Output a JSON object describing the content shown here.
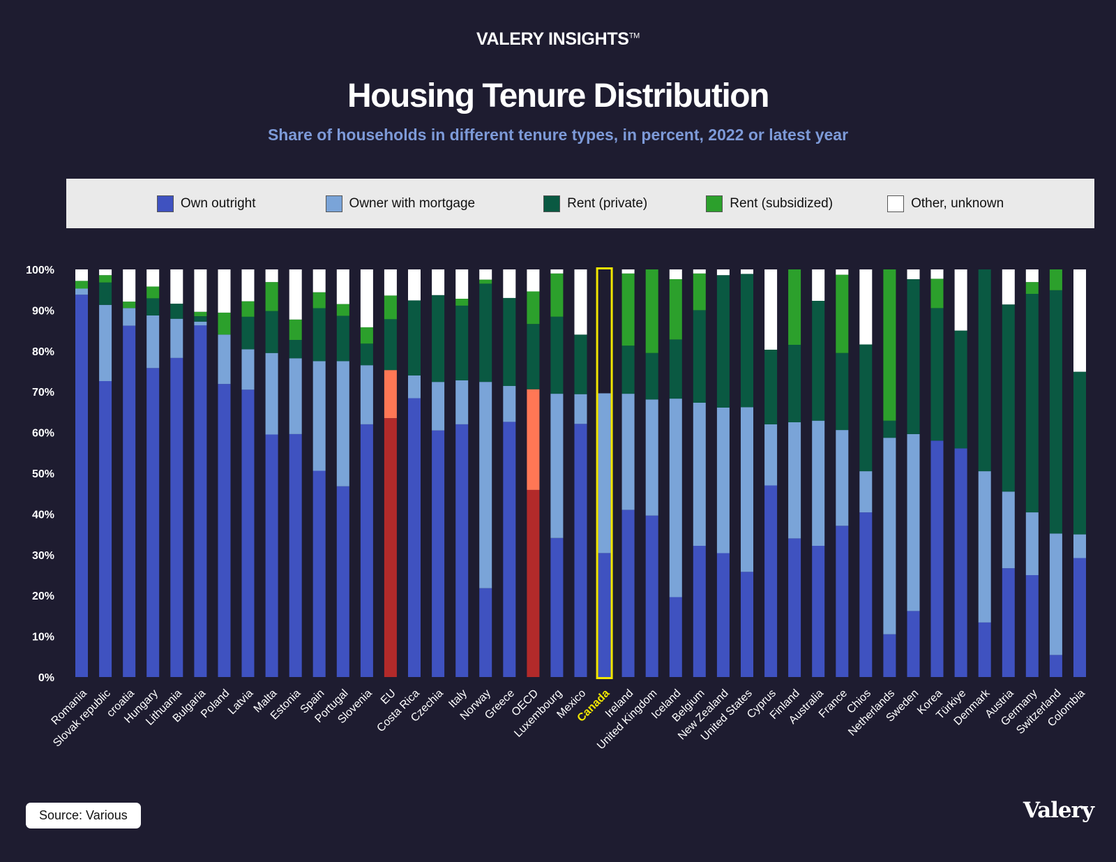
{
  "header": {
    "brand": "VALERY INSIGHTS",
    "brand_mark": "TM"
  },
  "footer": {
    "source": "Source: Various",
    "logo": "Valery"
  },
  "colors": {
    "background": "#1e1c30",
    "own_outright": "#3f52c0",
    "owner_with_mortgage": "#7aa4d8",
    "rent_private": "#0a5942",
    "rent_subsidized": "#2ca02c",
    "other_unknown": "#ffffff",
    "eu_oecd_own": "#b22a2a",
    "eu_oecd_mortgage": "#ff7755",
    "highlight": "#f2e600"
  },
  "chart_data": {
    "type": "bar",
    "stacked": true,
    "title": "Housing Tenure Distribution",
    "subtitle": "Share of households in different tenure types, in percent, 2022 or latest year",
    "ylim": [
      0,
      100
    ],
    "y_ticks": [
      "0%",
      "10%",
      "20%",
      "30%",
      "40%",
      "50%",
      "60%",
      "70%",
      "80%",
      "90%",
      "100%"
    ],
    "grid": false,
    "legend_position": "top",
    "highlighted_category": "Canada",
    "aggregate_categories": [
      "EU",
      "OECD"
    ],
    "categories": [
      "Romania",
      "Slovak republic",
      "croatia",
      "Hungary",
      "Lithuania",
      "Bulgaria",
      "Poland",
      "Latvia",
      "Malta",
      "Estonia",
      "Spain",
      "Portugal",
      "Slovenia",
      "EU",
      "Costa Rica",
      "Czechia",
      "Italy",
      "Norway",
      "Greece",
      "OECD",
      "Luxembourg",
      "Mexico",
      "Canada",
      "Ireland",
      "United Kingdom",
      "Iceland",
      "Belgium",
      "New Zealand",
      "United States",
      "Cyprus",
      "Finland",
      "Australia",
      "France",
      "Chios",
      "Netherlands",
      "Sweden",
      "Korea",
      "Türkiye",
      "Denmark",
      "Austria",
      "Germany",
      "Switzerland",
      "Colombia"
    ],
    "series": [
      {
        "name": "Own outright",
        "values": [
          93.8,
          72.6,
          86.2,
          75.8,
          78.3,
          86.3,
          71.9,
          70.5,
          59.5,
          59.6,
          50.6,
          46.8,
          62.0,
          63.5,
          68.4,
          60.5,
          62.0,
          21.8,
          62.6,
          45.9,
          34.1,
          62.1,
          30.4,
          41.0,
          39.6,
          19.6,
          32.2,
          30.4,
          25.8,
          47.0,
          34.0,
          32.2,
          37.1,
          40.4,
          10.5,
          16.2,
          58.0,
          56.1,
          13.4,
          26.7,
          25.0,
          5.4,
          29.2
        ]
      },
      {
        "name": "Owner with mortgage",
        "values": [
          1.5,
          18.7,
          4.3,
          12.9,
          9.6,
          0.9,
          12.1,
          9.9,
          20.0,
          18.6,
          26.9,
          30.7,
          14.5,
          11.8,
          5.6,
          11.9,
          10.8,
          50.6,
          8.8,
          24.7,
          35.4,
          7.3,
          39.2,
          28.5,
          28.5,
          48.7,
          35.1,
          35.7,
          40.4,
          15.0,
          28.5,
          30.7,
          23.5,
          10.1,
          48.2,
          43.4,
          0.0,
          0.0,
          37.1,
          18.8,
          15.4,
          29.8,
          5.8
        ]
      },
      {
        "name": "Rent (private)",
        "values": [
          0.0,
          5.5,
          0.0,
          4.2,
          3.7,
          1.3,
          0.0,
          8.0,
          10.3,
          4.5,
          13.0,
          11.1,
          5.3,
          12.5,
          18.4,
          21.3,
          18.3,
          24.1,
          21.6,
          16.0,
          18.9,
          14.6,
          0.0,
          11.8,
          11.4,
          14.5,
          22.7,
          32.5,
          32.7,
          18.3,
          19.0,
          29.4,
          18.9,
          31.1,
          4.2,
          38.0,
          32.5,
          28.9,
          49.5,
          45.9,
          53.6,
          59.7,
          39.9
        ]
      },
      {
        "name": "Rent (subsidized)",
        "values": [
          1.9,
          1.8,
          1.6,
          2.9,
          0.0,
          1.1,
          5.4,
          3.8,
          7.1,
          5.0,
          3.9,
          2.9,
          4.0,
          5.8,
          0.0,
          0.0,
          1.7,
          1.0,
          0.0,
          8.0,
          10.6,
          0.0,
          0.0,
          17.7,
          20.5,
          14.8,
          9.0,
          0.0,
          0.0,
          0.0,
          18.5,
          0.0,
          19.2,
          0.0,
          37.1,
          0.0,
          7.2,
          0.0,
          0.0,
          0.0,
          2.9,
          5.1,
          0.0
        ]
      },
      {
        "name": "Other, unknown",
        "values": [
          2.8,
          1.4,
          7.9,
          4.2,
          8.4,
          10.4,
          10.6,
          7.8,
          3.1,
          12.3,
          5.6,
          8.5,
          14.2,
          6.4,
          7.6,
          6.3,
          7.2,
          2.5,
          7.0,
          5.4,
          1.0,
          16.0,
          0.0,
          1.0,
          0.0,
          2.4,
          1.0,
          1.4,
          1.1,
          19.7,
          0.0,
          7.7,
          1.3,
          18.4,
          0.0,
          2.4,
          2.3,
          15.0,
          0.0,
          8.6,
          3.1,
          0.0,
          25.1
        ]
      }
    ]
  }
}
